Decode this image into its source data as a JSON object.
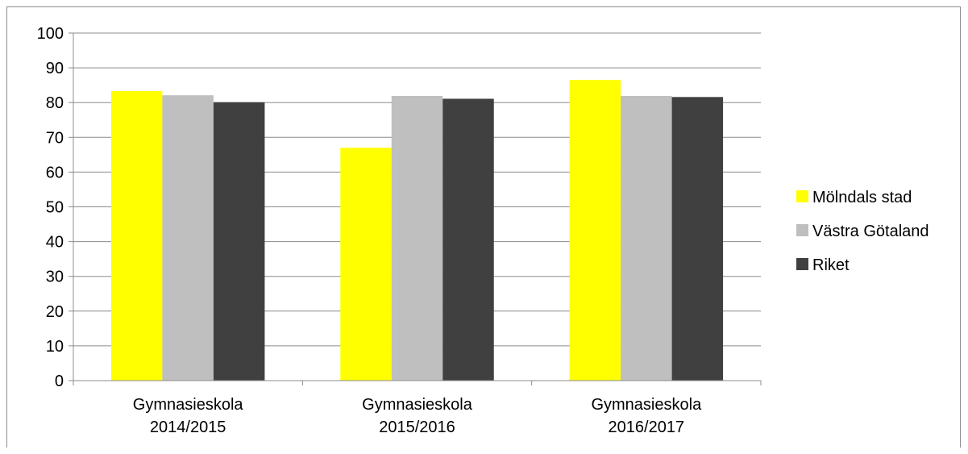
{
  "chart_data": {
    "type": "bar",
    "title": "",
    "xlabel": "",
    "ylabel": "",
    "categories": [
      [
        "Gymnasieskola",
        "2014/2015"
      ],
      [
        "Gymnasieskola",
        "2015/2016"
      ],
      [
        "Gymnasieskola",
        "2016/2017"
      ]
    ],
    "series": [
      {
        "name": "Mölndals stad",
        "color": "#ffff00",
        "values": [
          83.3,
          67.0,
          86.5
        ]
      },
      {
        "name": "Västra Götaland",
        "color": "#bfbfbf",
        "values": [
          82.1,
          81.9,
          81.9
        ]
      },
      {
        "name": "Riket",
        "color": "#404040",
        "values": [
          80.1,
          81.1,
          81.6
        ]
      }
    ],
    "ylim": [
      0,
      100
    ],
    "yticks": [
      0,
      10,
      20,
      30,
      40,
      50,
      60,
      70,
      80,
      90,
      100
    ],
    "grid": true,
    "legend_position": "right"
  }
}
